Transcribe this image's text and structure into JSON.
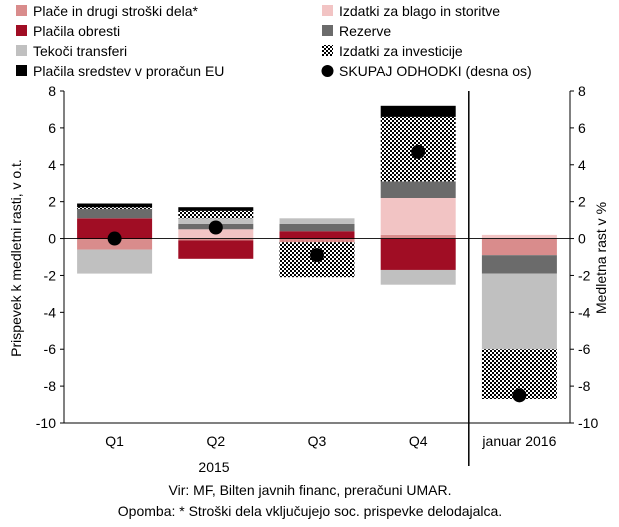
{
  "chart_data": {
    "type": "bar",
    "stacked": true,
    "categories": [
      "Q1",
      "Q2",
      "Q3",
      "Q4",
      "januar 2016"
    ],
    "x_group_label": "2015",
    "ylabel_left": "Prispevek k medletni rasti, v o.t.",
    "ylabel_right": "Medletna rast v %",
    "ylim": [
      -10,
      8
    ],
    "yticks": [
      -10,
      -8,
      -6,
      -4,
      -2,
      0,
      2,
      4,
      6,
      8
    ],
    "grid": false,
    "legend_position": "top",
    "series": [
      {
        "name": "Plače in drugi stroški dela*",
        "color": "#d98c8c",
        "pattern": "solid",
        "values": [
          -0.6,
          -0.1,
          -0.2,
          0.2,
          -0.9
        ]
      },
      {
        "name": "Izdatki za blago in storitve",
        "color": "#f2c4c4",
        "pattern": "solid",
        "values": [
          0.0,
          0.5,
          0.0,
          2.0,
          0.2
        ]
      },
      {
        "name": "Plačila obresti",
        "color": "#a00d24",
        "pattern": "solid",
        "values": [
          1.1,
          -1.0,
          0.4,
          -1.7,
          0.0
        ]
      },
      {
        "name": "Rezerve",
        "color": "#6b6b6b",
        "pattern": "solid",
        "values": [
          0.5,
          0.3,
          0.4,
          0.9,
          -1.0
        ]
      },
      {
        "name": "Tekoči transferi",
        "color": "#c0c0c0",
        "pattern": "solid",
        "values": [
          -1.3,
          0.3,
          0.3,
          -0.8,
          -4.1
        ]
      },
      {
        "name": "Izdatki za investicije",
        "color": "#000000",
        "pattern": "checker",
        "values": [
          0.1,
          0.4,
          -1.9,
          3.5,
          -2.7
        ]
      },
      {
        "name": "Plačila sredstev v proračun EU",
        "color": "#000000",
        "pattern": "solid",
        "values": [
          0.2,
          0.2,
          0.0,
          0.6,
          0.0
        ]
      }
    ],
    "line_series": {
      "name": "SKUPAJ ODHODKI (desna os)",
      "marker": "circle",
      "color": "#000000",
      "values": [
        0.0,
        0.6,
        -0.9,
        4.7,
        -8.5
      ]
    },
    "separator_after_index": 3
  },
  "source_note": "Vir: MF, Bilten javnih financ, preračuni UMAR.",
  "footnote": "Opomba: * Stroški dela vključujejo soc. prispevke delodajalca."
}
